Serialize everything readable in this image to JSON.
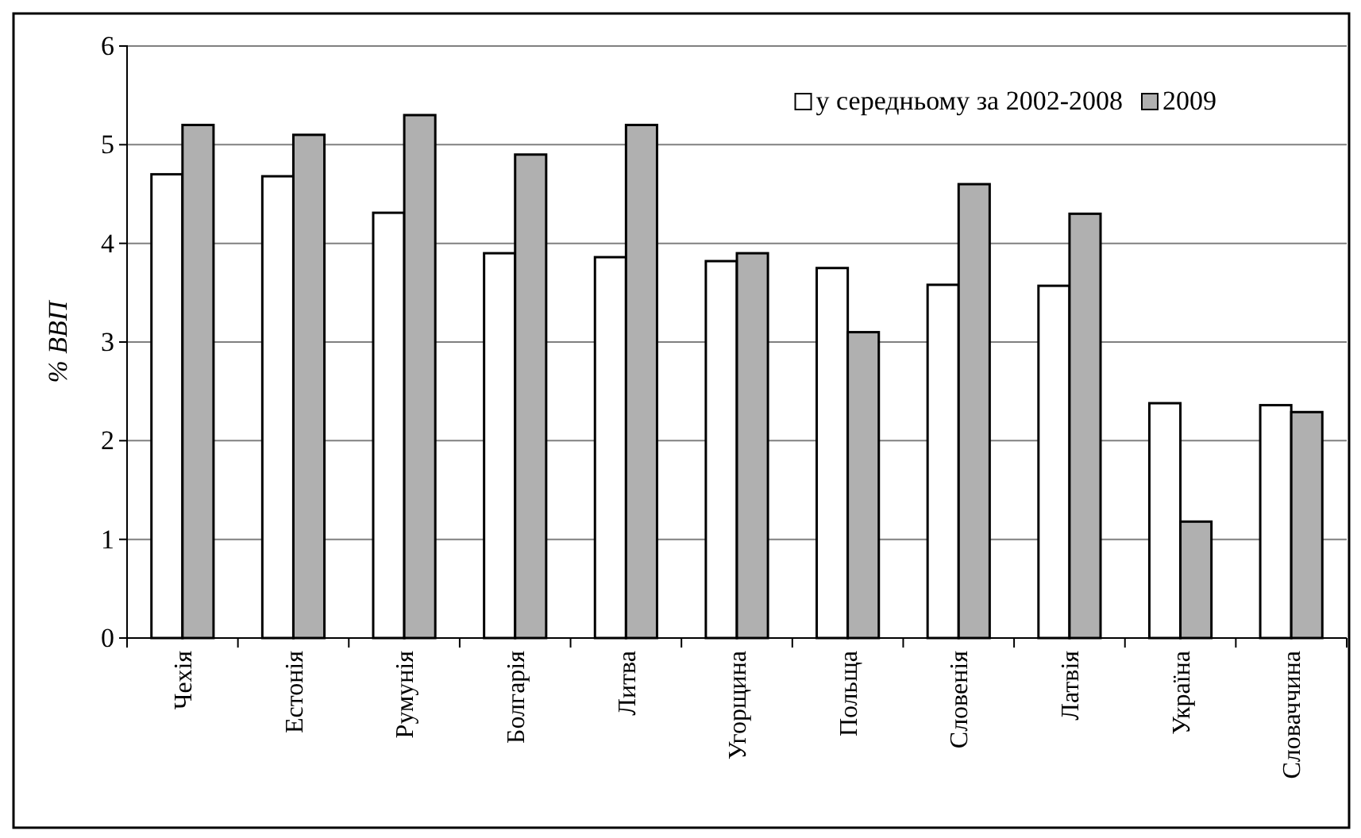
{
  "chart_data": {
    "type": "bar",
    "ylabel": "% ВВП",
    "categories": [
      "Чехія",
      "Естонія",
      "Румунія",
      "Болгарія",
      "Литва",
      "Угорщина",
      "Польща",
      "Словенія",
      "Латвія",
      "Україна",
      "Словаччина"
    ],
    "series": [
      {
        "name": "у середньому за 2002-2008",
        "color": "#ffffff",
        "values": [
          4.7,
          4.68,
          4.31,
          3.9,
          3.86,
          3.82,
          3.75,
          3.58,
          3.57,
          2.38,
          2.36
        ]
      },
      {
        "name": "2009",
        "color": "#b0b0b0",
        "values": [
          5.2,
          5.1,
          5.3,
          4.9,
          5.2,
          3.9,
          3.1,
          4.6,
          4.3,
          1.18,
          2.29
        ]
      }
    ],
    "ylim": [
      0,
      6
    ],
    "yticks": [
      0,
      1,
      2,
      3,
      4,
      5,
      6
    ],
    "grid": "y",
    "legend": "top right"
  }
}
